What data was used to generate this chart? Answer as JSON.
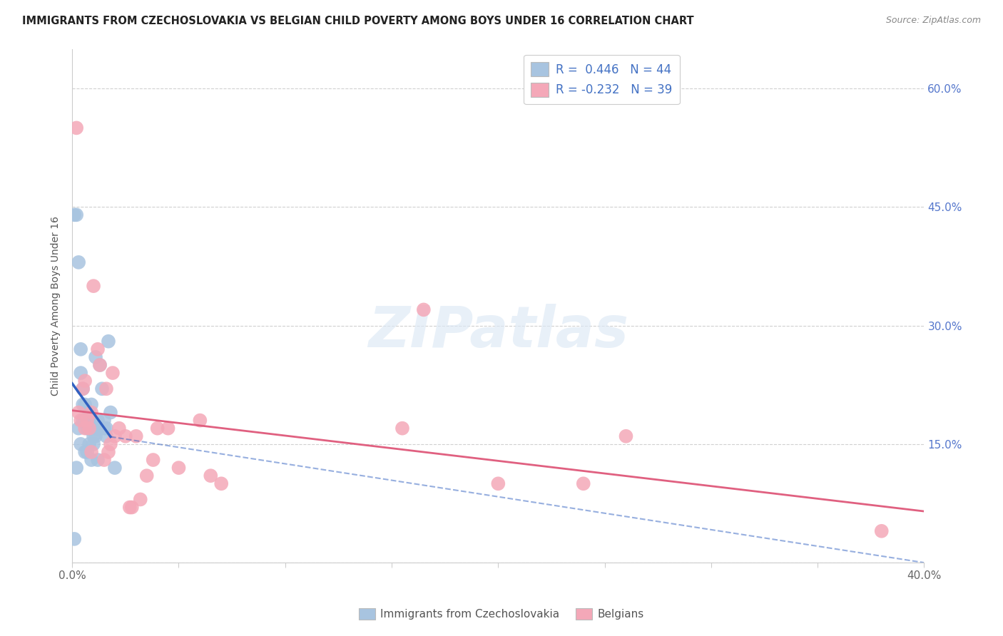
{
  "title": "IMMIGRANTS FROM CZECHOSLOVAKIA VS BELGIAN CHILD POVERTY AMONG BOYS UNDER 16 CORRELATION CHART",
  "source": "Source: ZipAtlas.com",
  "ylabel": "Child Poverty Among Boys Under 16",
  "xlim": [
    0.0,
    0.4
  ],
  "ylim": [
    0.0,
    0.65
  ],
  "xticks": [
    0.0,
    0.05,
    0.1,
    0.15,
    0.2,
    0.25,
    0.3,
    0.35,
    0.4
  ],
  "xtick_labels": [
    "0.0%",
    "",
    "",
    "",
    "",
    "",
    "",
    "",
    "40.0%"
  ],
  "yticks": [
    0.0,
    0.15,
    0.3,
    0.45,
    0.6
  ],
  "ytick_labels_left": [
    "",
    "",
    "",
    "",
    ""
  ],
  "ytick_labels_right": [
    "",
    "15.0%",
    "30.0%",
    "45.0%",
    "60.0%"
  ],
  "grid_color": "#d0d0d0",
  "background_color": "#ffffff",
  "blue_color": "#a8c4e0",
  "pink_color": "#f4a8b8",
  "blue_line_color": "#3060c0",
  "pink_line_color": "#e06080",
  "R_blue": 0.446,
  "N_blue": 44,
  "R_pink": -0.232,
  "N_pink": 39,
  "legend_label_blue": "Immigrants from Czechoslovakia",
  "legend_label_pink": "Belgians",
  "watermark": "ZIPatlas",
  "blue_points_x": [
    0.001,
    0.002,
    0.003,
    0.004,
    0.004,
    0.005,
    0.005,
    0.005,
    0.006,
    0.006,
    0.007,
    0.007,
    0.008,
    0.008,
    0.008,
    0.009,
    0.009,
    0.009,
    0.01,
    0.01,
    0.011,
    0.011,
    0.012,
    0.012,
    0.013,
    0.013,
    0.014,
    0.015,
    0.015,
    0.016,
    0.016,
    0.017,
    0.018,
    0.001,
    0.002,
    0.003,
    0.004,
    0.006,
    0.007,
    0.008,
    0.009,
    0.01,
    0.012,
    0.02
  ],
  "blue_points_y": [
    0.44,
    0.44,
    0.38,
    0.24,
    0.27,
    0.18,
    0.2,
    0.22,
    0.18,
    0.2,
    0.17,
    0.18,
    0.17,
    0.18,
    0.19,
    0.17,
    0.18,
    0.2,
    0.16,
    0.17,
    0.16,
    0.26,
    0.17,
    0.18,
    0.17,
    0.25,
    0.22,
    0.17,
    0.18,
    0.16,
    0.17,
    0.28,
    0.19,
    0.03,
    0.12,
    0.17,
    0.15,
    0.14,
    0.14,
    0.15,
    0.13,
    0.15,
    0.13,
    0.12
  ],
  "pink_points_x": [
    0.002,
    0.003,
    0.005,
    0.006,
    0.007,
    0.008,
    0.009,
    0.01,
    0.012,
    0.013,
    0.015,
    0.016,
    0.017,
    0.018,
    0.019,
    0.02,
    0.022,
    0.025,
    0.027,
    0.028,
    0.03,
    0.032,
    0.035,
    0.038,
    0.04,
    0.045,
    0.05,
    0.06,
    0.065,
    0.07,
    0.155,
    0.165,
    0.2,
    0.24,
    0.26,
    0.38,
    0.004,
    0.006,
    0.009
  ],
  "pink_points_y": [
    0.55,
    0.19,
    0.22,
    0.17,
    0.18,
    0.17,
    0.19,
    0.35,
    0.27,
    0.25,
    0.13,
    0.22,
    0.14,
    0.15,
    0.24,
    0.16,
    0.17,
    0.16,
    0.07,
    0.07,
    0.16,
    0.08,
    0.11,
    0.13,
    0.17,
    0.17,
    0.12,
    0.18,
    0.11,
    0.1,
    0.17,
    0.32,
    0.1,
    0.1,
    0.16,
    0.04,
    0.18,
    0.23,
    0.14
  ]
}
